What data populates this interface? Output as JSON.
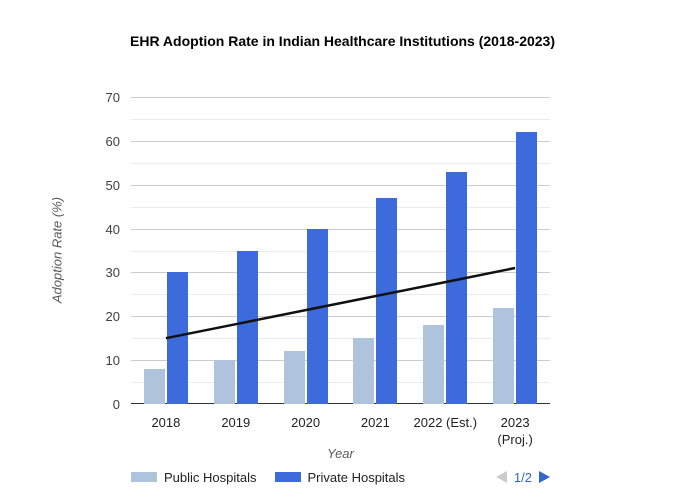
{
  "title": "EHR Adoption Rate in Indian Healthcare Institutions (2018-2023)",
  "chart_data": {
    "type": "bar",
    "subtype": "grouped-bars-with-line-overlay",
    "title": "EHR Adoption Rate in Indian Healthcare Institutions (2018-2023)",
    "xlabel": "Year",
    "ylabel": "Adoption Rate (%)",
    "ylim": [
      0,
      70
    ],
    "y_major_step": 10,
    "y_minor_step": 5,
    "grid": "on",
    "gridline_color": "#cccccc",
    "minor_gridline_color": "#ebebeb",
    "baseline_color": "#333333",
    "categories": [
      "2018",
      "2019",
      "2020",
      "2021",
      "2022 (Est.)",
      "2023 (Proj.)"
    ],
    "category_tick_lines": [
      [
        "2018"
      ],
      [
        "2019"
      ],
      [
        "2020"
      ],
      [
        "2021"
      ],
      [
        "2022 (Est.)"
      ],
      [
        "2023",
        "(Proj.)"
      ]
    ],
    "series": [
      {
        "name": "Public Hospitals",
        "type": "bar",
        "color": "#b0c3dc",
        "values": [
          8,
          10,
          12,
          15,
          18,
          22
        ]
      },
      {
        "name": "Private Hospitals",
        "type": "bar",
        "color": "#3d6bdc",
        "values": [
          30,
          35,
          40,
          47,
          53,
          62
        ]
      },
      {
        "name": "",
        "note": "black straight trend line; legend label on hidden page 2/2",
        "type": "line",
        "color": "#111111",
        "values": [
          15,
          18.2,
          21.4,
          24.6,
          27.8,
          31
        ]
      }
    ],
    "legend_position": "bottom"
  },
  "legend": {
    "entries": [
      "Public Hospitals",
      "Private Hospitals"
    ],
    "pagination": "1/2"
  },
  "colors": {
    "background": "#ffffff",
    "pagination_active": "#3366cc",
    "pagination_disabled": "#cccccc"
  }
}
